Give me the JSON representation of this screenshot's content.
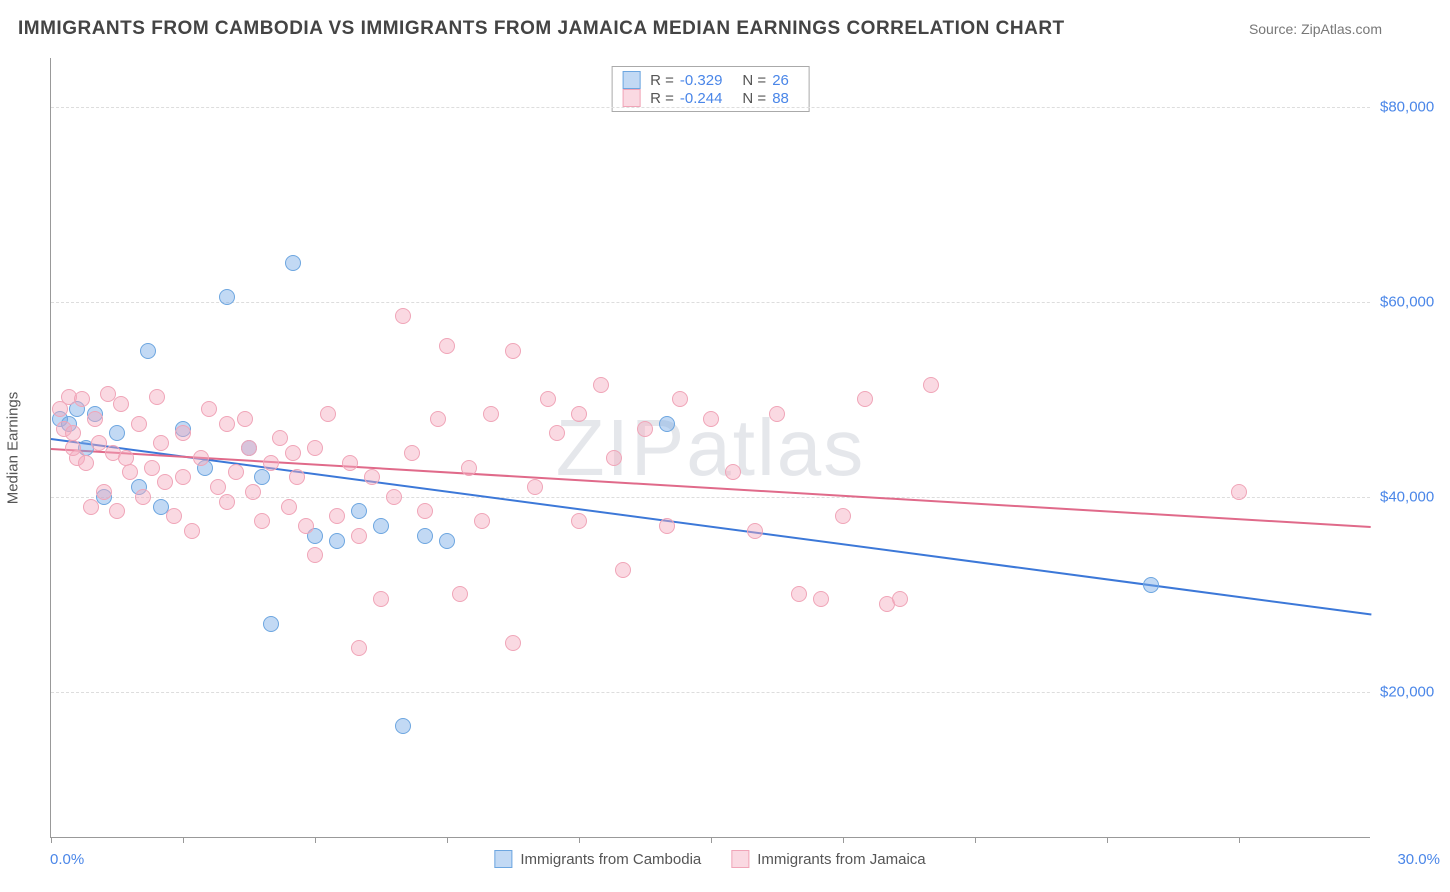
{
  "header": {
    "title": "IMMIGRANTS FROM CAMBODIA VS IMMIGRANTS FROM JAMAICA MEDIAN EARNINGS CORRELATION CHART",
    "source_prefix": "Source: ",
    "source_name": "ZipAtlas.com"
  },
  "chart": {
    "type": "scatter",
    "watermark": "ZIPatlas",
    "ylabel": "Median Earnings",
    "x_axis": {
      "min": 0.0,
      "max": 30.0,
      "min_label": "0.0%",
      "max_label": "30.0%",
      "ticks_pct": [
        0,
        10,
        20,
        30,
        40,
        50,
        60,
        70,
        80,
        90
      ]
    },
    "y_axis": {
      "min": 5000,
      "max": 85000,
      "gridlines": [
        20000,
        40000,
        60000,
        80000
      ],
      "labels": [
        "$20,000",
        "$40,000",
        "$60,000",
        "$80,000"
      ]
    },
    "series": [
      {
        "name": "Immigrants from Cambodia",
        "color_fill": "rgba(120,170,230,0.45)",
        "color_stroke": "#6da6e0",
        "marker_radius": 8,
        "R": "-0.329",
        "N": "26",
        "trend": {
          "color": "#3c78d8",
          "y_at_x0": 46000,
          "y_at_x30": 28000
        },
        "points": [
          [
            0.2,
            48000
          ],
          [
            0.4,
            47500
          ],
          [
            0.6,
            49000
          ],
          [
            0.8,
            45000
          ],
          [
            1.0,
            48500
          ],
          [
            1.2,
            40000
          ],
          [
            1.5,
            46500
          ],
          [
            2.0,
            41000
          ],
          [
            2.2,
            55000
          ],
          [
            2.5,
            39000
          ],
          [
            3.0,
            47000
          ],
          [
            3.5,
            43000
          ],
          [
            4.0,
            60500
          ],
          [
            4.5,
            45000
          ],
          [
            5.0,
            27000
          ],
          [
            5.5,
            64000
          ],
          [
            6.0,
            36000
          ],
          [
            6.5,
            35500
          ],
          [
            7.0,
            38500
          ],
          [
            7.5,
            37000
          ],
          [
            8.5,
            36000
          ],
          [
            8.0,
            16500
          ],
          [
            9.0,
            35500
          ],
          [
            14.0,
            47500
          ],
          [
            25.0,
            31000
          ],
          [
            4.8,
            42000
          ]
        ]
      },
      {
        "name": "Immigrants from Jamaica",
        "color_fill": "rgba(245,170,190,0.45)",
        "color_stroke": "#f0a5b8",
        "marker_radius": 8,
        "R": "-0.244",
        "N": "88",
        "trend": {
          "color": "#e06a8a",
          "y_at_x0": 45000,
          "y_at_x30": 37000
        },
        "points": [
          [
            0.2,
            49000
          ],
          [
            0.3,
            47000
          ],
          [
            0.4,
            50200
          ],
          [
            0.5,
            46500
          ],
          [
            0.6,
            44000
          ],
          [
            0.7,
            50000
          ],
          [
            0.8,
            43500
          ],
          [
            0.9,
            39000
          ],
          [
            1.0,
            48000
          ],
          [
            1.1,
            45500
          ],
          [
            1.2,
            40500
          ],
          [
            1.3,
            50500
          ],
          [
            1.4,
            44500
          ],
          [
            1.5,
            38500
          ],
          [
            1.6,
            49500
          ],
          [
            1.8,
            42500
          ],
          [
            2.0,
            47500
          ],
          [
            2.1,
            40000
          ],
          [
            2.3,
            43000
          ],
          [
            2.4,
            50200
          ],
          [
            2.6,
            41500
          ],
          [
            2.8,
            38000
          ],
          [
            3.0,
            46500
          ],
          [
            3.2,
            36500
          ],
          [
            3.4,
            44000
          ],
          [
            3.6,
            49000
          ],
          [
            3.8,
            41000
          ],
          [
            4.0,
            47500
          ],
          [
            4.2,
            42500
          ],
          [
            4.4,
            48000
          ],
          [
            4.6,
            40500
          ],
          [
            4.8,
            37500
          ],
          [
            5.0,
            43500
          ],
          [
            5.2,
            46000
          ],
          [
            5.4,
            39000
          ],
          [
            5.6,
            42000
          ],
          [
            5.8,
            37000
          ],
          [
            6.0,
            45000
          ],
          [
            6.3,
            48500
          ],
          [
            6.5,
            38000
          ],
          [
            6.8,
            43500
          ],
          [
            7.0,
            36000
          ],
          [
            7.3,
            42000
          ],
          [
            7.5,
            29500
          ],
          [
            7.8,
            40000
          ],
          [
            8.0,
            58500
          ],
          [
            8.2,
            44500
          ],
          [
            8.5,
            38500
          ],
          [
            8.8,
            48000
          ],
          [
            9.0,
            55500
          ],
          [
            9.3,
            30000
          ],
          [
            9.5,
            43000
          ],
          [
            9.8,
            37500
          ],
          [
            10.0,
            48500
          ],
          [
            10.5,
            55000
          ],
          [
            10.5,
            25000
          ],
          [
            11.0,
            41000
          ],
          [
            11.3,
            50000
          ],
          [
            11.5,
            46500
          ],
          [
            12.0,
            48500
          ],
          [
            12.5,
            51500
          ],
          [
            12.8,
            44000
          ],
          [
            13.0,
            32500
          ],
          [
            13.5,
            47000
          ],
          [
            14.0,
            37000
          ],
          [
            14.3,
            50000
          ],
          [
            15.0,
            48000
          ],
          [
            15.5,
            42500
          ],
          [
            16.0,
            36500
          ],
          [
            16.5,
            48500
          ],
          [
            17.0,
            30000
          ],
          [
            17.5,
            29500
          ],
          [
            18.0,
            38000
          ],
          [
            18.5,
            50000
          ],
          [
            19.0,
            29000
          ],
          [
            19.3,
            29500
          ],
          [
            20.0,
            51500
          ],
          [
            7.0,
            24500
          ],
          [
            4.5,
            45000
          ],
          [
            3.0,
            42000
          ],
          [
            2.5,
            45500
          ],
          [
            1.7,
            44000
          ],
          [
            0.5,
            45000
          ],
          [
            6.0,
            34000
          ],
          [
            5.5,
            44500
          ],
          [
            4.0,
            39500
          ],
          [
            12.0,
            37500
          ],
          [
            27.0,
            40500
          ]
        ]
      }
    ],
    "stat_legend": {
      "R_label": "R =",
      "N_label": "N ="
    },
    "colors": {
      "grid": "#dddddd",
      "axis": "#999999",
      "tick_label": "#4a86e8",
      "text": "#555"
    }
  }
}
